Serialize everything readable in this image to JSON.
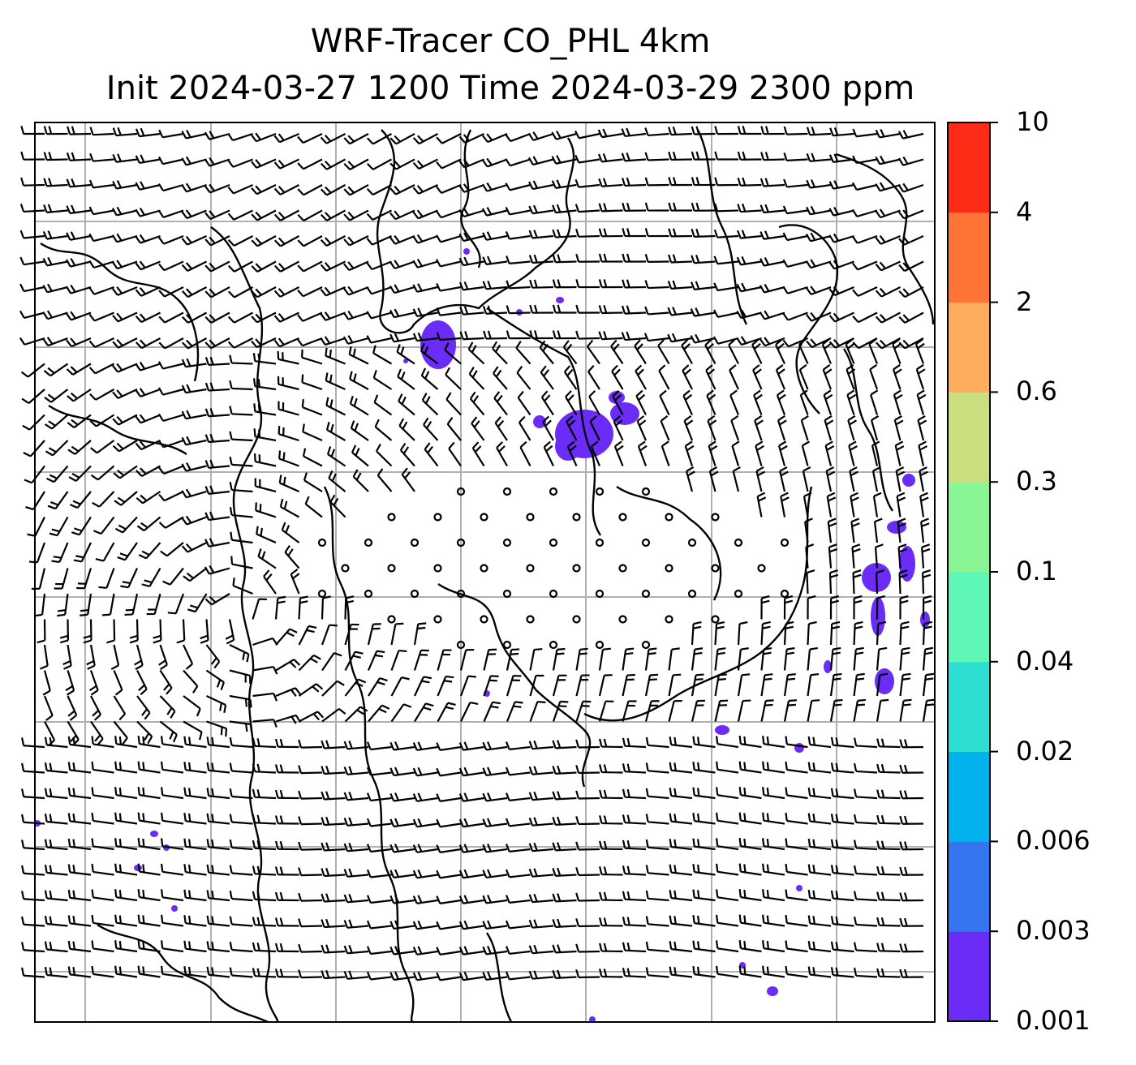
{
  "title": {
    "line1": "WRF-Tracer CO_PHL 4km",
    "line2": "Init 2024-03-27 1200 Time 2024-03-29 2300 ppm"
  },
  "colorbar": {
    "levels": [
      "0.001",
      "0.003",
      "0.006",
      "0.02",
      "0.04",
      "0.1",
      "0.3",
      "0.6",
      "2",
      "4",
      "10"
    ],
    "colors": [
      "#6a2cf6",
      "#3575f0",
      "#00b1ee",
      "#2ddfd2",
      "#5ef7b5",
      "#8af594",
      "#ccdf80",
      "#fdad5c",
      "#ff7334",
      "#fe2b16"
    ]
  },
  "map": {
    "background": "#ffffff",
    "gridline_color": "#b0b0b0",
    "tracer_color": "#6a2cf6",
    "barb_color": "#000000"
  }
}
